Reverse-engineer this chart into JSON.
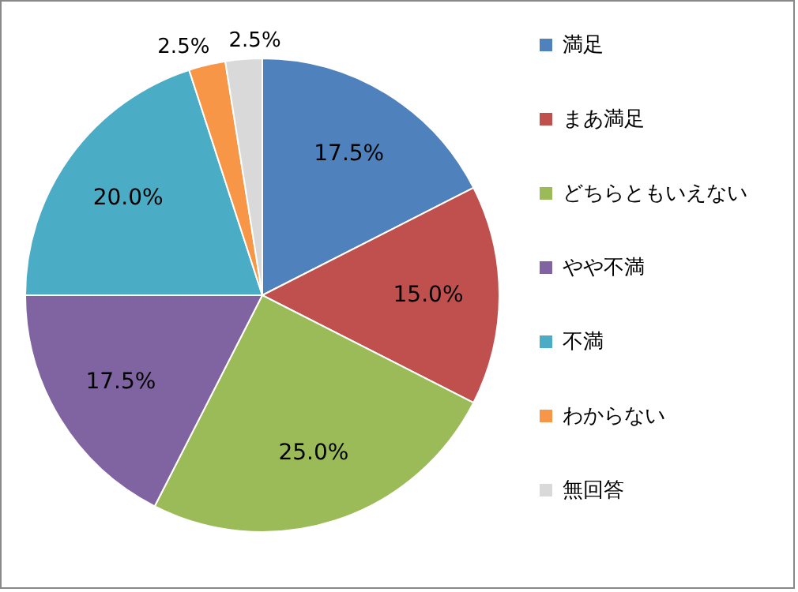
{
  "chart_data": {
    "type": "pie",
    "categories": [
      "満足",
      "まあ満足",
      "どちらともいえない",
      "やや不満",
      "不満",
      "わからない",
      "無回答"
    ],
    "values": [
      17.5,
      15.0,
      25.0,
      17.5,
      20.0,
      2.5,
      2.5
    ],
    "colors": [
      "#4f81bd",
      "#c0504d",
      "#9bbb59",
      "#8064a2",
      "#4bacc6",
      "#f79646",
      "#d9d9d9"
    ],
    "value_labels": [
      "17.5%",
      "15.0%",
      "25.0%",
      "17.5%",
      "20.0%",
      "2.5%",
      "2.5%"
    ],
    "legend": "right"
  }
}
